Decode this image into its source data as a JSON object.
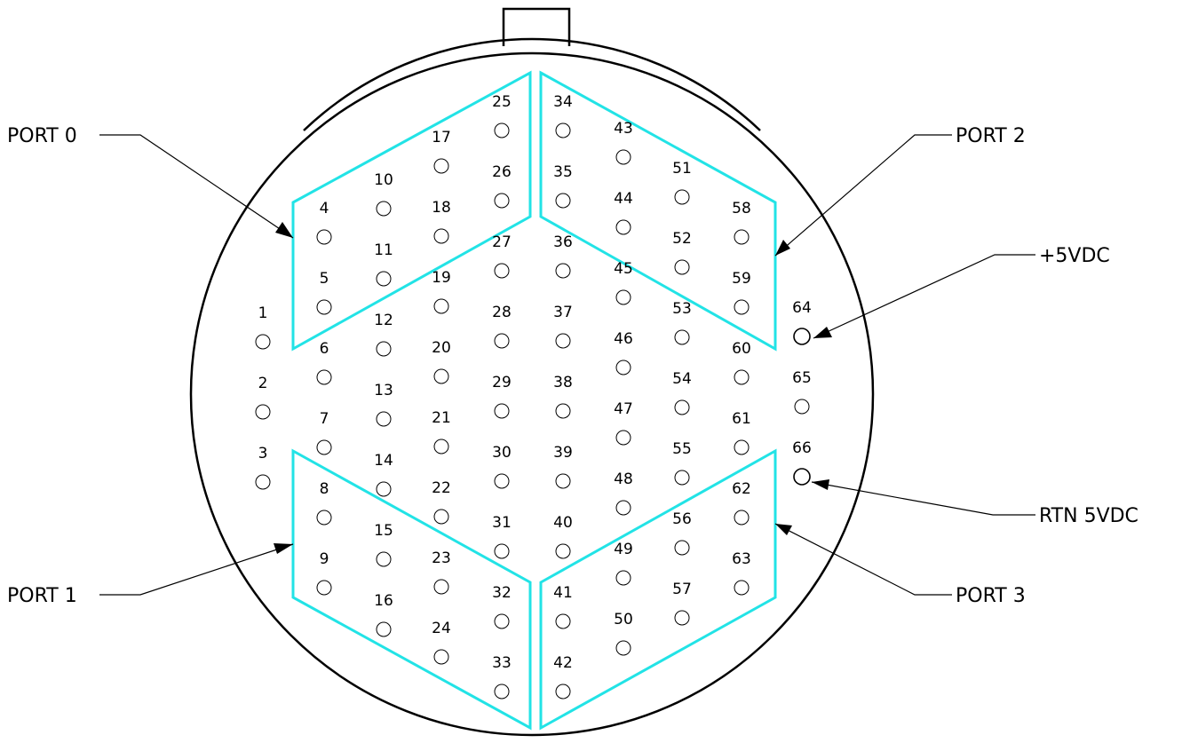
{
  "diagram": {
    "callouts": {
      "port0": "PORT 0",
      "port1": "PORT 1",
      "port2": "PORT 2",
      "port3": "PORT 3",
      "plus5vdc": "+5VDC",
      "rtn5vdc": "RTN 5VDC"
    },
    "pin_labels": [
      "1",
      "2",
      "3",
      "4",
      "5",
      "6",
      "7",
      "8",
      "9",
      "10",
      "11",
      "12",
      "13",
      "14",
      "15",
      "16",
      "17",
      "18",
      "19",
      "20",
      "21",
      "22",
      "23",
      "24",
      "25",
      "26",
      "27",
      "28",
      "29",
      "30",
      "31",
      "32",
      "33",
      "34",
      "35",
      "36",
      "37",
      "38",
      "39",
      "40",
      "41",
      "42",
      "43",
      "44",
      "45",
      "46",
      "47",
      "48",
      "49",
      "50",
      "51",
      "52",
      "53",
      "54",
      "55",
      "56",
      "57",
      "58",
      "59",
      "60",
      "61",
      "62",
      "63",
      "64",
      "65",
      "66"
    ],
    "colors": {
      "port_outline": "#22e3e6",
      "lines": "#000000",
      "background": "#ffffff"
    }
  }
}
